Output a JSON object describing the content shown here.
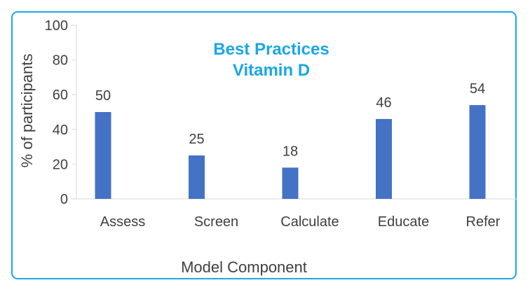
{
  "chart_data": {
    "type": "bar",
    "title_lines": [
      "Best Practices",
      "Vitamin D"
    ],
    "title_color": "#1aa7e6",
    "categories": [
      "Assess",
      "Screen",
      "Calculate",
      "Educate",
      "Refer"
    ],
    "values": [
      50,
      25,
      18,
      46,
      54
    ],
    "data_labels": [
      "50",
      "25",
      "18",
      "46",
      "54"
    ],
    "xlabel": "Model Component",
    "ylabel": "% of participants",
    "ylim": [
      0,
      100
    ],
    "yticks": [
      0,
      20,
      40,
      60,
      80,
      100
    ],
    "ytick_labels": [
      "0",
      "20",
      "40",
      "60",
      "80",
      "100"
    ],
    "grid": false,
    "bar_color": "#4472c4",
    "axis_color": "#d9d9d9",
    "frame_color": "#1aa7e6"
  }
}
